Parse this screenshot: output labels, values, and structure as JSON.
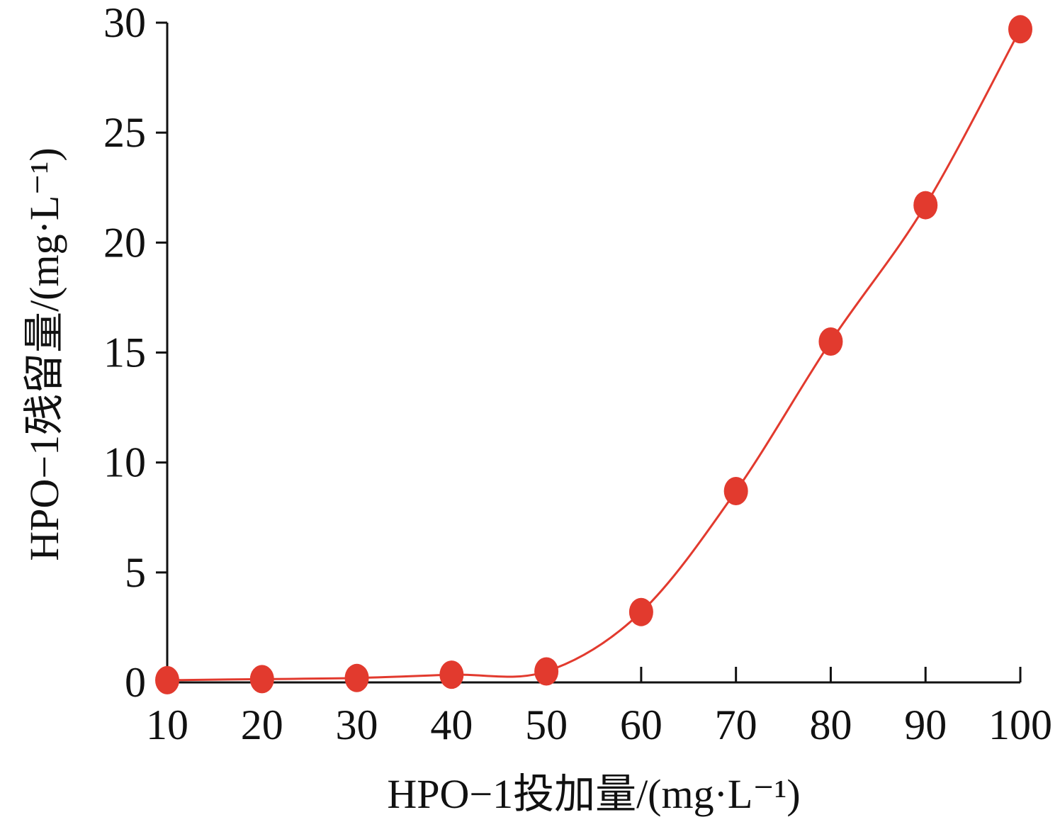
{
  "chart_data": {
    "type": "line",
    "x": [
      10,
      20,
      30,
      40,
      50,
      60,
      70,
      80,
      90,
      100
    ],
    "series": [
      {
        "values": [
          0.1,
          0.15,
          0.2,
          0.35,
          0.5,
          3.2,
          8.7,
          15.5,
          21.7,
          29.7
        ],
        "color": "#e23a2e"
      }
    ],
    "xlabel": "HPO−1投加量/(mg·L⁻¹)",
    "ylabel": "HPO−1残留量/(mg·L⁻¹)",
    "xlim": [
      10,
      100
    ],
    "ylim": [
      0,
      30
    ],
    "xticks": [
      10,
      20,
      30,
      40,
      50,
      60,
      70,
      80,
      90,
      100
    ],
    "yticks": [
      0,
      5,
      10,
      15,
      20,
      25,
      30
    ],
    "grid": false,
    "legend": "none",
    "smooth": true
  }
}
